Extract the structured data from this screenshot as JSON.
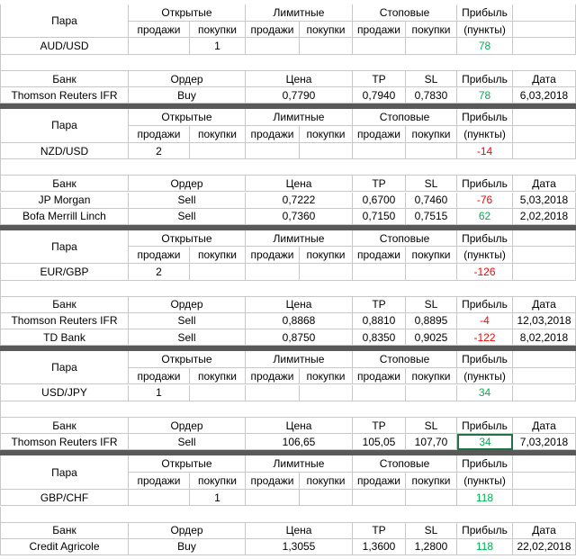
{
  "pair_headers": [
    "Пара",
    "Открытые",
    "Лимитные",
    "Стоповые",
    "Прибыль"
  ],
  "sub_headers": [
    "продажи",
    "покупки",
    "(пункты)"
  ],
  "bank_headers": [
    "Банк",
    "Ордер",
    "Цена",
    "TP",
    "SL",
    "Прибыль",
    "Дата"
  ],
  "blocks": [
    {
      "pair": "AUD/USD",
      "cells": [
        null,
        1,
        null,
        null,
        null,
        null
      ],
      "profit": 78,
      "rows": [
        [
          "Thomson Reuters IFR",
          "Buy",
          "0,7790",
          "0,7940",
          "0,7830",
          78,
          "6,03,2018"
        ]
      ]
    },
    {
      "pair": "NZD/USD",
      "cells": [
        2,
        null,
        null,
        null,
        null,
        null
      ],
      "profit": -14,
      "rows": [
        [
          "JP Morgan",
          "Sell",
          "0,7222",
          "0,6700",
          "0,7460",
          -76,
          "5,03,2018"
        ],
        [
          "Bofa Merrill Linch",
          "Sell",
          "0,7360",
          "0,7150",
          "0,7515",
          62,
          "2,02,2018"
        ]
      ]
    },
    {
      "pair": "EUR/GBP",
      "cells": [
        2,
        null,
        null,
        null,
        null,
        null
      ],
      "profit": -126,
      "rows": [
        [
          "Thomson Reuters IFR",
          "Sell",
          "0,8868",
          "0,8810",
          "0,8895",
          -4,
          "12,03,2018"
        ],
        [
          "TD Bank",
          "Sell",
          "0,8750",
          "0,8350",
          "0,9025",
          -122,
          "8,02,2018"
        ]
      ]
    },
    {
      "pair": "USD/JPY",
      "cells": [
        1,
        null,
        null,
        null,
        null,
        null
      ],
      "profit": 34,
      "rows": [
        [
          "Thomson Reuters IFR",
          "Sell",
          "106,65",
          "105,05",
          "107,70",
          34,
          "7,03,2018"
        ]
      ]
    },
    {
      "pair": "GBP/CHF",
      "cells": [
        null,
        1,
        null,
        null,
        null,
        null
      ],
      "profit": 118,
      "rows": [
        [
          "Credit Agricole",
          "Buy",
          "1,3055",
          "1,3600",
          "1,2800",
          118,
          "22,02,2018"
        ]
      ]
    }
  ]
}
